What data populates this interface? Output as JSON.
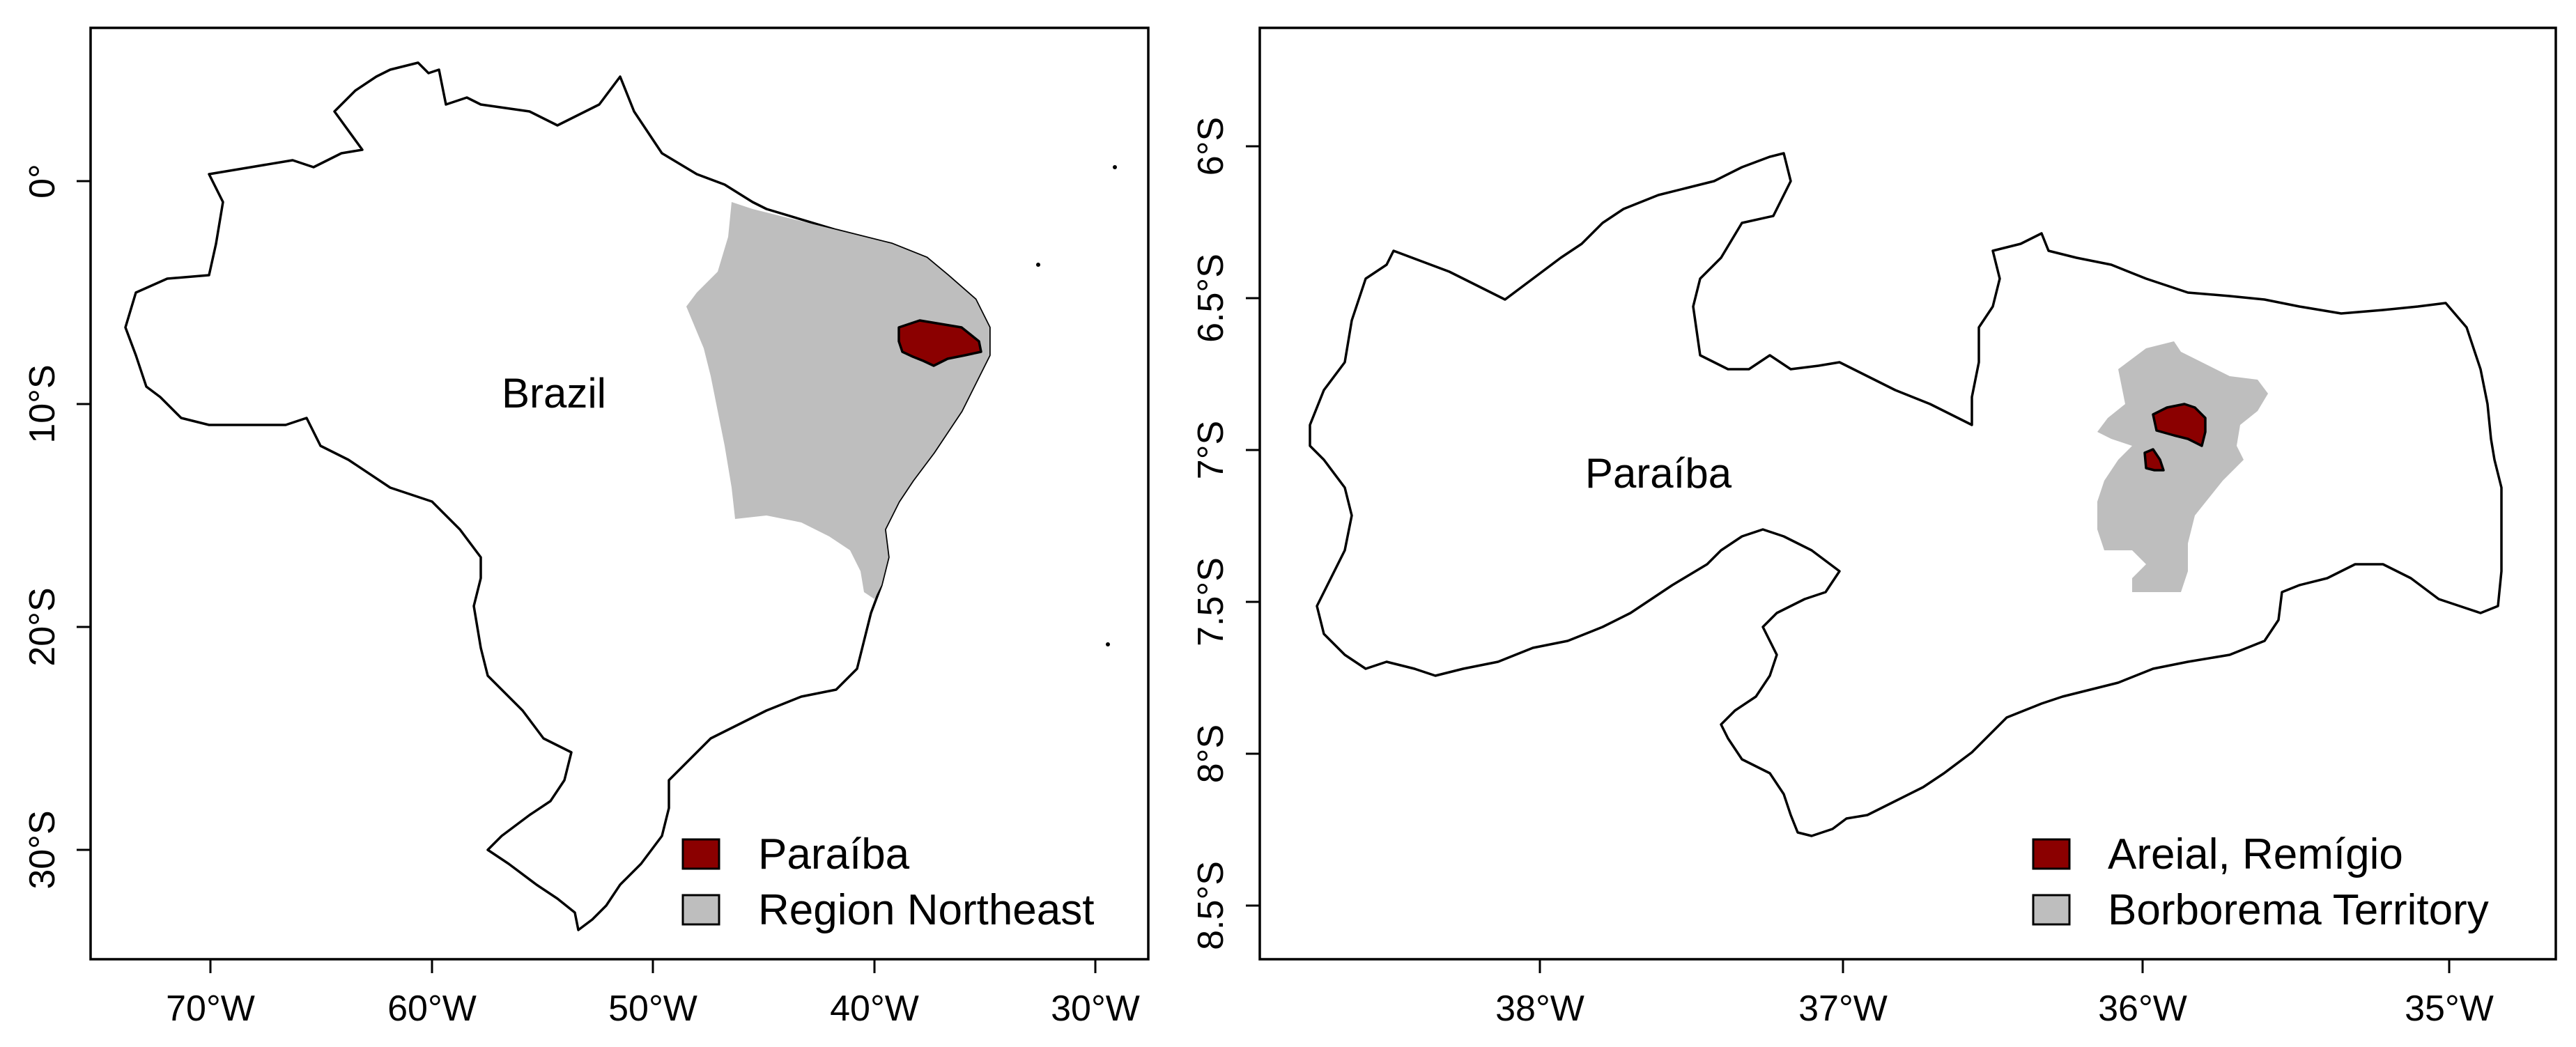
{
  "colors": {
    "highlight": "#8b0000",
    "region": "#bebebe",
    "outline": "#000000",
    "background": "#ffffff"
  },
  "left_map": {
    "label": "Brazil",
    "x_ticks": [
      "70°W",
      "60°W",
      "50°W",
      "40°W",
      "30°W"
    ],
    "y_ticks": [
      "0°",
      "10°S",
      "20°S",
      "30°S"
    ],
    "legend": [
      {
        "label": "Paraíba",
        "color": "#8b0000"
      },
      {
        "label": "Region Northeast",
        "color": "#bebebe"
      }
    ]
  },
  "right_map": {
    "label": "Paraíba",
    "x_ticks": [
      "38°W",
      "37°W",
      "36°W",
      "35°W"
    ],
    "y_ticks": [
      "6°S",
      "6.5°S",
      "7°S",
      "7.5°S",
      "8°S",
      "8.5°S"
    ],
    "legend": [
      {
        "label": "Areial, Remígio",
        "color": "#8b0000"
      },
      {
        "label": "Borborema Territory",
        "color": "#bebebe"
      }
    ]
  }
}
